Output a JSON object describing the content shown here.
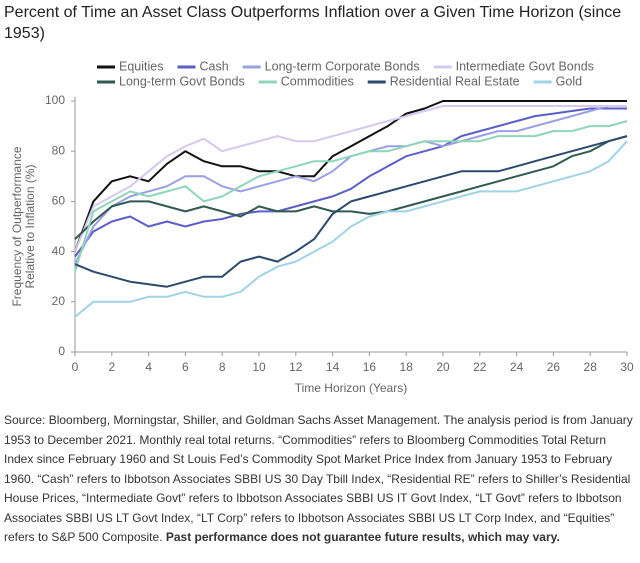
{
  "chart_data": {
    "type": "line",
    "title": "Percent of Time an Asset Class Outperforms Inflation over a Given Time Horizon (since 1953)",
    "xlabel": "Time Horizon (Years)",
    "ylabel": [
      "Frequency of Outperformance",
      "Relative to Inflation (%)"
    ],
    "x": [
      0,
      1,
      2,
      3,
      4,
      5,
      6,
      7,
      8,
      9,
      10,
      11,
      12,
      13,
      14,
      15,
      16,
      17,
      18,
      19,
      20,
      21,
      22,
      23,
      24,
      25,
      26,
      27,
      28,
      29,
      30
    ],
    "xlim": [
      0,
      30
    ],
    "xticks": [
      0,
      2,
      4,
      6,
      8,
      10,
      12,
      14,
      16,
      18,
      20,
      22,
      24,
      26,
      28,
      30
    ],
    "ylim": [
      0,
      100
    ],
    "yticks": [
      0,
      20,
      40,
      60,
      80,
      100
    ],
    "series": [
      {
        "name": "Equities",
        "color": "#111111",
        "values": [
          40,
          60,
          68,
          70,
          68,
          75,
          80,
          76,
          74,
          74,
          72,
          72,
          70,
          70,
          78,
          82,
          86,
          90,
          95,
          97,
          100,
          100,
          100,
          100,
          100,
          100,
          100,
          100,
          100,
          100,
          100
        ]
      },
      {
        "name": "Cash",
        "color": "#5a5fc8",
        "values": [
          38,
          48,
          52,
          54,
          50,
          52,
          50,
          52,
          53,
          55,
          56,
          56,
          58,
          60,
          62,
          65,
          70,
          74,
          78,
          80,
          82,
          86,
          88,
          90,
          92,
          94,
          95,
          96,
          97,
          97,
          97
        ]
      },
      {
        "name": "Long-term Corporate Bonds",
        "color": "#9aa0e6",
        "values": [
          35,
          50,
          58,
          62,
          64,
          66,
          70,
          70,
          66,
          64,
          66,
          68,
          70,
          68,
          72,
          78,
          80,
          82,
          82,
          84,
          82,
          84,
          86,
          88,
          88,
          90,
          92,
          94,
          96,
          98,
          98
        ]
      },
      {
        "name": "Intermediate Govt Bonds",
        "color": "#d6c8f0",
        "values": [
          40,
          58,
          62,
          66,
          72,
          78,
          82,
          85,
          80,
          82,
          84,
          86,
          84,
          84,
          86,
          88,
          90,
          92,
          94,
          96,
          98,
          98,
          98,
          98,
          98,
          98,
          98,
          98,
          98,
          98,
          98
        ]
      },
      {
        "name": "Long-term Govt Bonds",
        "color": "#2f5a4f",
        "values": [
          45,
          52,
          58,
          60,
          60,
          58,
          56,
          58,
          56,
          54,
          58,
          56,
          56,
          58,
          56,
          56,
          55,
          56,
          58,
          60,
          62,
          64,
          66,
          68,
          70,
          72,
          74,
          78,
          80,
          84,
          86
        ]
      },
      {
        "name": "Commodities",
        "color": "#8fd6b8",
        "values": [
          32,
          56,
          60,
          64,
          62,
          64,
          66,
          60,
          62,
          66,
          70,
          72,
          74,
          76,
          76,
          78,
          80,
          80,
          82,
          84,
          84,
          84,
          84,
          86,
          86,
          86,
          88,
          88,
          90,
          90,
          92
        ]
      },
      {
        "name": "Residential Real Estate",
        "color": "#2b4a6f",
        "values": [
          35,
          32,
          30,
          28,
          27,
          26,
          28,
          30,
          30,
          36,
          38,
          36,
          40,
          45,
          55,
          60,
          62,
          64,
          66,
          68,
          70,
          72,
          72,
          72,
          74,
          76,
          78,
          80,
          82,
          84,
          86
        ]
      },
      {
        "name": "Gold",
        "color": "#9fd3e8",
        "values": [
          14,
          20,
          20,
          20,
          22,
          22,
          24,
          22,
          22,
          24,
          30,
          34,
          36,
          40,
          44,
          50,
          54,
          56,
          56,
          58,
          60,
          62,
          64,
          64,
          64,
          66,
          68,
          70,
          72,
          76,
          84
        ]
      }
    ]
  },
  "source": "Source: Bloomberg, Morningstar, Shiller, and Goldman Sachs Asset Management. The analysis period is from January 1953 to December 2021. Monthly real total returns. “Commodities” refers to Bloomberg Commodities Total Return Index since February 1960 and St Louis Fed’s Commodity Spot Market Price Index from January 1953 to February 1960. “Cash” refers to Ibbotson Associates SBBI US 30 Day Tbill Index, “Residential RE” refers to Shiller’s Residential House Prices, “Intermediate Govt” refers to Ibbotson Associates SBBI US IT Govt Index, “LT Govt” refers to Ibbotson Associates SBBI US LT Govt Index, “LT Corp” refers to Ibbotson Associates SBBI US LT Corp Index, and “Equities” refers to S&P 500 Composite.",
  "disclaimer": "Past performance does not guarantee future results, which may vary."
}
